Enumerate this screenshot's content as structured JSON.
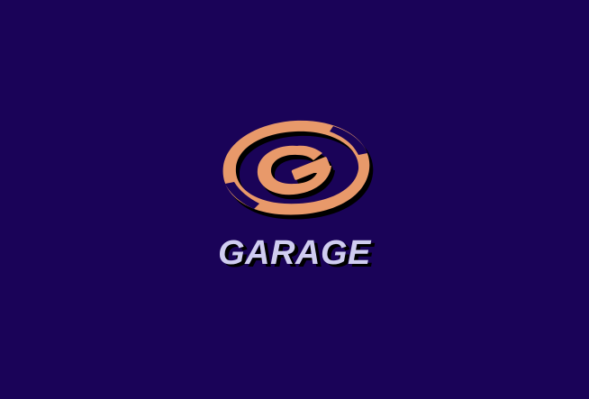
{
  "brand": {
    "name": "GARAGE",
    "logo_icon": "garage-g-swirl-icon"
  },
  "colors": {
    "background": "#1a0358",
    "logo_orange": "#e8996a",
    "wordmark": "#d0cdf0",
    "shadow": "#000000"
  }
}
